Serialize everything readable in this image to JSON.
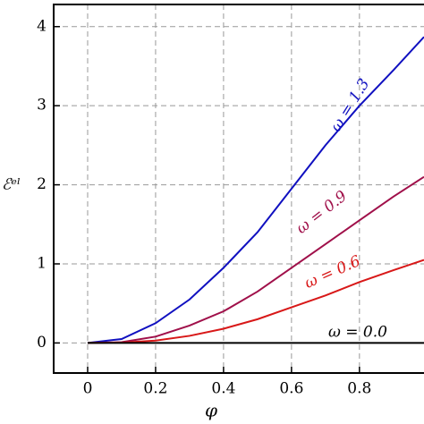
{
  "chart_data": {
    "type": "line",
    "xlabel": "φ",
    "ylabel": "ℰᵉˡ",
    "x": [
      0,
      0.1,
      0.2,
      0.3,
      0.4,
      0.5,
      0.6,
      0.7,
      0.8,
      0.9,
      0.99
    ],
    "series": [
      {
        "name": "ω = 1.3",
        "color": "#1010c0",
        "values": [
          0,
          0.05,
          0.25,
          0.55,
          0.95,
          1.4,
          1.95,
          2.5,
          3.0,
          3.45,
          3.87
        ]
      },
      {
        "name": "ω = 0.9",
        "color": "#a0104a",
        "values": [
          0,
          0.01,
          0.08,
          0.22,
          0.4,
          0.65,
          0.95,
          1.25,
          1.55,
          1.85,
          2.1
        ]
      },
      {
        "name": "ω = 0.6",
        "color": "#d81818",
        "values": [
          0,
          0.005,
          0.03,
          0.09,
          0.18,
          0.3,
          0.45,
          0.6,
          0.77,
          0.92,
          1.05
        ]
      },
      {
        "name": "ω = 0.0",
        "color": "#000000",
        "values": [
          0,
          0,
          0,
          0,
          0,
          0,
          0,
          0,
          0,
          0,
          0
        ]
      }
    ],
    "xlim": [
      -0.1,
      0.99
    ],
    "ylim": [
      -0.38,
      4.28
    ],
    "xticks": [
      0,
      0.2,
      0.4,
      0.6,
      0.8
    ],
    "yticks": [
      0,
      1,
      2,
      3,
      4
    ],
    "grid": true
  }
}
